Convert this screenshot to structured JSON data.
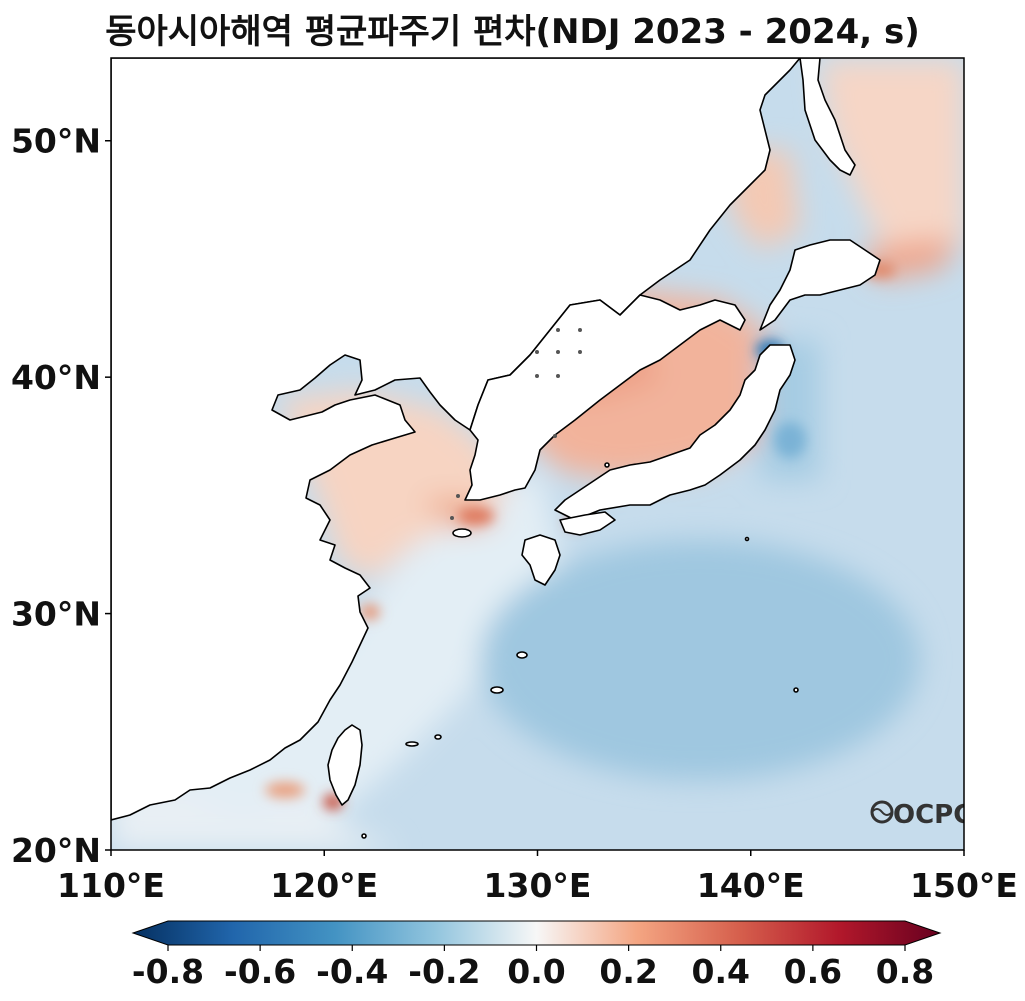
{
  "title": "동아시아해역 평균파주기 편차(NDJ 2023 - 2024, s)",
  "map": {
    "lon_range": [
      110,
      150
    ],
    "lat_range": [
      20,
      53.5
    ],
    "lon_ticks": [
      "110°E",
      "120°E",
      "130°E",
      "140°E",
      "150°E"
    ],
    "lat_ticks": [
      "20°N",
      "30°N",
      "40°N",
      "50°N"
    ],
    "land_color": "#ffffff",
    "coastline_color": "#000000"
  },
  "colorbar": {
    "colormap": "RdBu_r",
    "range": [
      -0.8,
      0.8
    ],
    "extend": "both",
    "ticks": [
      "-0.8",
      "-0.6",
      "-0.4",
      "-0.2",
      "0.0",
      "0.2",
      "0.4",
      "0.6",
      "0.8"
    ]
  },
  "logo": "OCPC"
}
